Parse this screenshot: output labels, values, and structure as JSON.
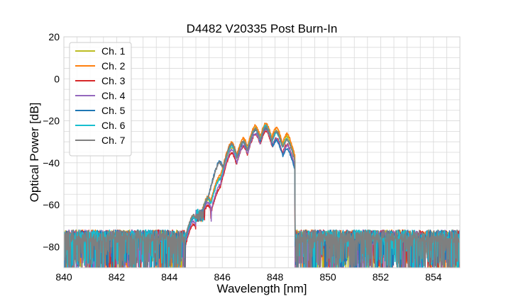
{
  "chart_data": {
    "type": "line",
    "title": "D4482 V20335 Post Burn-In",
    "xlabel": "Wavelength [nm]",
    "ylabel": "Optical Power [dB]",
    "xlim": [
      840,
      855
    ],
    "ylim": [
      -90,
      20
    ],
    "xticks": [
      840,
      842,
      844,
      846,
      848,
      850,
      852,
      854
    ],
    "yticks": [
      20,
      0,
      -20,
      -40,
      -60,
      -80
    ],
    "xtick_labels": [
      "840",
      "842",
      "844",
      "846",
      "848",
      "850",
      "852",
      "854"
    ],
    "ytick_labels": [
      "20",
      "0",
      "−20",
      "−40",
      "−60",
      "−80"
    ],
    "grid": true,
    "legend_position": "top-left",
    "noise_floor_db": -80,
    "series": [
      {
        "name": "Ch. 1",
        "color": "#bcbd22",
        "offset_db": 0.6,
        "peaks": [
          [
            844.9,
            -66
          ],
          [
            845.45,
            -58
          ],
          [
            845.9,
            -48
          ],
          [
            846.35,
            -33
          ],
          [
            846.8,
            -30
          ],
          [
            847.25,
            -24
          ],
          [
            847.65,
            -22.5
          ],
          [
            848.05,
            -25
          ],
          [
            848.45,
            -28
          ]
        ]
      },
      {
        "name": "Ch. 2",
        "color": "#ff7f0e",
        "offset_db": 0.8,
        "peaks": [
          [
            844.9,
            -66
          ],
          [
            845.45,
            -57
          ],
          [
            845.9,
            -47
          ],
          [
            846.35,
            -31
          ],
          [
            846.8,
            -29
          ],
          [
            847.25,
            -23
          ],
          [
            847.65,
            -22
          ],
          [
            848.05,
            -24
          ],
          [
            848.45,
            -27
          ]
        ]
      },
      {
        "name": "Ch. 3",
        "color": "#d62728",
        "offset_db": -1.2,
        "peaks": [
          [
            844.9,
            -68
          ],
          [
            845.45,
            -59
          ],
          [
            845.9,
            -51
          ],
          [
            846.35,
            -34
          ],
          [
            846.8,
            -31
          ],
          [
            847.25,
            -25
          ],
          [
            847.65,
            -23.5
          ],
          [
            848.05,
            -27
          ],
          [
            848.45,
            -30
          ]
        ]
      },
      {
        "name": "Ch. 4",
        "color": "#9467bd",
        "offset_db": -0.8,
        "peaks": [
          [
            844.9,
            -67
          ],
          [
            845.45,
            -58
          ],
          [
            845.9,
            -50
          ],
          [
            846.35,
            -33
          ],
          [
            846.8,
            -31
          ],
          [
            847.25,
            -25
          ],
          [
            847.65,
            -23
          ],
          [
            848.05,
            -28
          ],
          [
            848.45,
            -31
          ]
        ]
      },
      {
        "name": "Ch. 5",
        "color": "#1f77b4",
        "offset_db": -0.3,
        "peaks": [
          [
            844.9,
            -66
          ],
          [
            845.45,
            -57
          ],
          [
            845.9,
            -39
          ],
          [
            846.35,
            -31
          ],
          [
            846.8,
            -30
          ],
          [
            847.25,
            -24
          ],
          [
            847.65,
            -23
          ],
          [
            848.05,
            -29
          ],
          [
            848.45,
            -33
          ]
        ]
      },
      {
        "name": "Ch. 6",
        "color": "#17becf",
        "offset_db": 0.2,
        "peaks": [
          [
            844.9,
            -66
          ],
          [
            845.45,
            -57
          ],
          [
            845.9,
            -48
          ],
          [
            846.35,
            -32
          ],
          [
            846.8,
            -30
          ],
          [
            847.25,
            -24
          ],
          [
            847.65,
            -22.5
          ],
          [
            848.05,
            -26
          ],
          [
            848.45,
            -29
          ]
        ]
      },
      {
        "name": "Ch. 7",
        "color": "#7f7f7f",
        "offset_db": 0.0,
        "peaks": [
          [
            844.9,
            -65
          ],
          [
            845.45,
            -57
          ],
          [
            845.9,
            -40
          ],
          [
            846.35,
            -31
          ],
          [
            846.8,
            -30
          ],
          [
            847.25,
            -24
          ],
          [
            847.65,
            -23
          ],
          [
            848.05,
            -25
          ],
          [
            848.45,
            -29
          ]
        ]
      }
    ]
  }
}
